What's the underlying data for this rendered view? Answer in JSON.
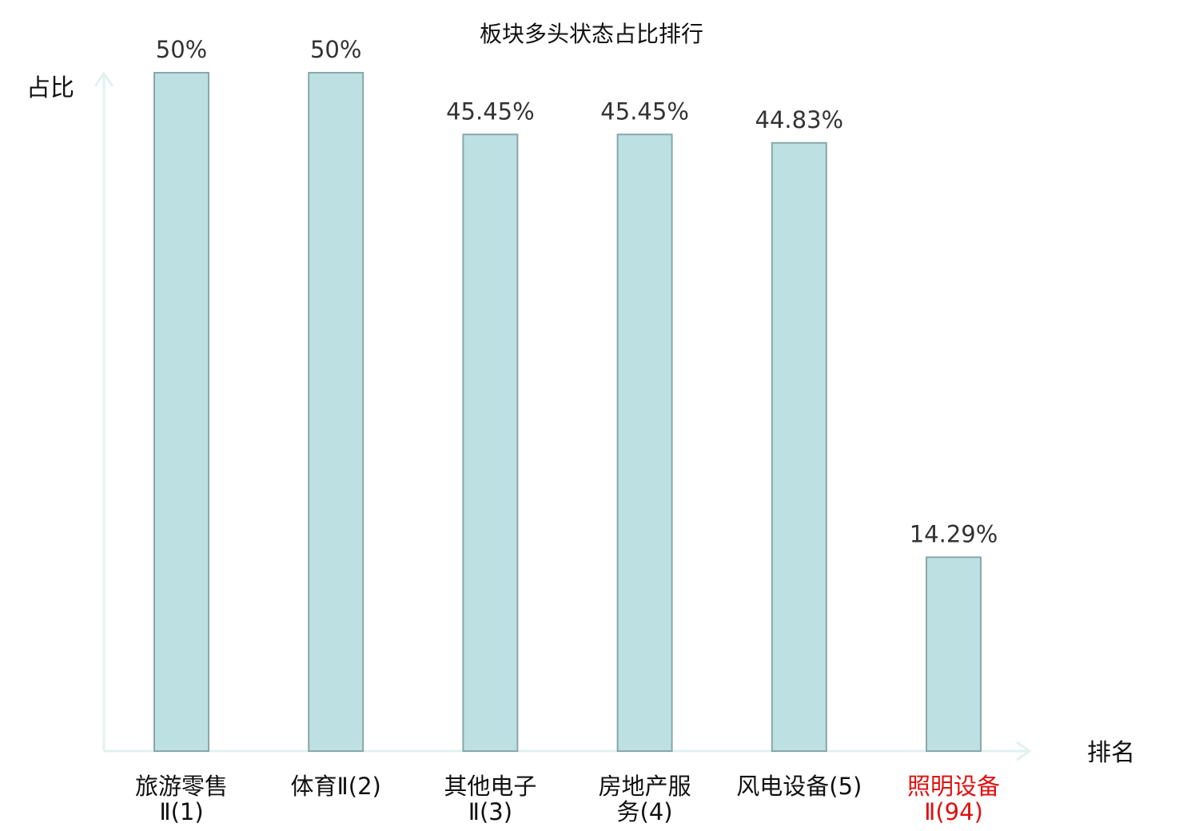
{
  "chart_data": {
    "type": "bar",
    "title": "板块多头状态占比排行",
    "ylabel": "占比",
    "xlabel": "排名",
    "ylim": [
      0,
      50
    ],
    "categories": [
      {
        "name": "旅游零售Ⅱ",
        "rank": "(1)",
        "lines": [
          "旅游零售",
          "Ⅱ(1)"
        ],
        "highlight": false
      },
      {
        "name": "体育Ⅱ",
        "rank": "(2)",
        "lines": [
          "体育Ⅱ(2)"
        ],
        "highlight": false
      },
      {
        "name": "其他电子Ⅱ",
        "rank": "(3)",
        "lines": [
          "其他电子",
          "Ⅱ(3)"
        ],
        "highlight": false
      },
      {
        "name": "房地产服务",
        "rank": "(4)",
        "lines": [
          "房地产服",
          "务(4)"
        ],
        "highlight": false
      },
      {
        "name": "风电设备",
        "rank": "(5)",
        "lines": [
          "风电设备(5)"
        ],
        "highlight": false
      },
      {
        "name": "照明设备Ⅱ",
        "rank": "(94)",
        "lines": [
          "照明设备",
          "Ⅱ(94)"
        ],
        "highlight": true
      }
    ],
    "values": [
      50,
      50,
      45.45,
      45.45,
      44.83,
      14.29
    ],
    "value_labels": [
      "50%",
      "50%",
      "45.45%",
      "45.45%",
      "44.83%",
      "14.29%"
    ],
    "grid": false,
    "legend": "none",
    "colors": {
      "bar_fill": "#bde0e2",
      "bar_stroke": "#8aa7a9",
      "axis": "#e0f2f0",
      "highlight": "#e01010"
    }
  }
}
